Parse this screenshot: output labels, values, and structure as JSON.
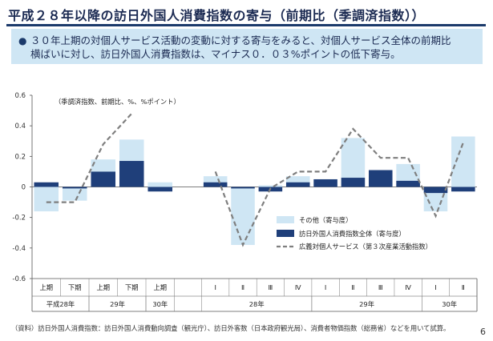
{
  "header": {
    "title": "平成２８年以降の訪日外国人消費指数の寄与（前期比（季調済指数））"
  },
  "summary": {
    "bullet": "●",
    "line1": "３０年上期の対個人サービス活動の変動に対する寄与をみると、対個人サービス全体の前期比",
    "line2": "横ばいに対し、訪日外国人消費指数は、マイナス０．０３%ポイントの低下寄与。"
  },
  "chart_data": {
    "type": "bar",
    "note": "（季調済指数、前期比、%、%ポイント）",
    "ylim": [
      -0.6,
      0.6
    ],
    "yticks": [
      "0.6",
      "0.4",
      "0.2",
      "0",
      "-0.2",
      "-0.4",
      "-0.6"
    ],
    "half_year": {
      "categories": [
        "上期",
        "下期",
        "上期",
        "下期",
        "上期"
      ],
      "years": [
        {
          "label": "平成28年",
          "span": [
            0,
            1
          ]
        },
        {
          "label": "29年",
          "span": [
            2,
            3
          ]
        },
        {
          "label": "30年",
          "span": [
            4,
            4
          ]
        }
      ],
      "series": [
        {
          "name": "その他（寄与度）",
          "values": [
            -0.16,
            -0.09,
            0.18,
            0.31,
            0.03
          ]
        },
        {
          "name": "訪日外国人消費指数全体（寄与度）",
          "values": [
            0.03,
            -0.01,
            0.1,
            0.17,
            -0.03
          ]
        },
        {
          "name": "広義対個人サービス（第３次産業活動指数）",
          "values": [
            -0.1,
            -0.1,
            0.28,
            0.48,
            null
          ]
        }
      ]
    },
    "quarterly": {
      "categories": [
        "Ⅰ",
        "Ⅱ",
        "Ⅲ",
        "Ⅳ",
        "Ⅰ",
        "Ⅱ",
        "Ⅲ",
        "Ⅳ",
        "Ⅰ",
        "Ⅱ"
      ],
      "years": [
        {
          "label": "28年",
          "span": [
            0,
            3
          ]
        },
        {
          "label": "29年",
          "span": [
            4,
            7
          ]
        },
        {
          "label": "30年",
          "span": [
            8,
            9
          ]
        }
      ],
      "series": [
        {
          "name": "その他（寄与度）",
          "values": [
            0.07,
            -0.38,
            0.01,
            0.07,
            0.05,
            0.32,
            0.08,
            0.15,
            -0.16,
            0.33
          ]
        },
        {
          "name": "訪日外国人消費指数全体（寄与度）",
          "values": [
            0.03,
            -0.01,
            -0.03,
            0.03,
            0.05,
            0.06,
            0.11,
            0.04,
            -0.04,
            -0.03
          ]
        },
        {
          "name": "広義対個人サービス（第３次産業活動指数）",
          "values": [
            0.1,
            -0.38,
            -0.01,
            0.1,
            0.1,
            0.38,
            0.19,
            0.19,
            -0.19,
            0.29
          ]
        }
      ]
    },
    "legend": {
      "position": "right-lower",
      "items": [
        "その他（寄与度）",
        "訪日外国人消費指数全体（寄与度）",
        "広義対個人サービス（第３次産業活動指数）"
      ]
    },
    "colors": {
      "other": "#cfe6f4",
      "inbound": "#1f3f7a",
      "line": "#7f7f7f"
    }
  },
  "footer": {
    "source": "（資料）訪日外国人消費指数：訪日外国人消費動向調査（観光庁）、訪日外客数（日本政府観光局）、消費者物価指数（総務省）などを用いて試算。",
    "page_number": "6"
  }
}
